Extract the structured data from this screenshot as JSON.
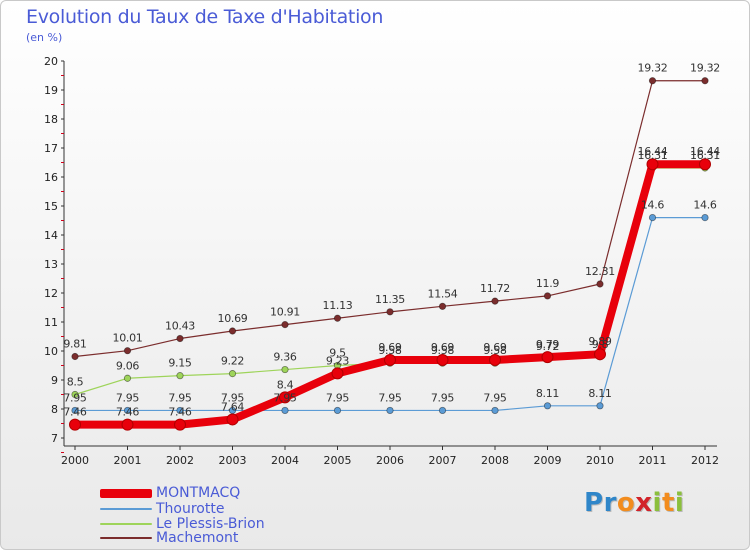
{
  "title": "Evolution du Taux de Taxe d'Habitation",
  "subtitle": "(en %)",
  "logo": {
    "text": "Proxiti",
    "letters": [
      {
        "ch": "P",
        "color": "#2f86c9"
      },
      {
        "ch": "r",
        "color": "#2f86c9"
      },
      {
        "ch": "o",
        "color": "#f28c1e"
      },
      {
        "ch": "x",
        "color": "#d2232a"
      },
      {
        "ch": "i",
        "color": "#8bbf3c"
      },
      {
        "ch": "t",
        "color": "#f28c1e"
      },
      {
        "ch": "i",
        "color": "#8bbf3c"
      }
    ]
  },
  "chart_data": {
    "type": "line",
    "title": "Evolution du Taux de Taxe d'Habitation",
    "ylabel": "(en %)",
    "xlabel": "",
    "x": [
      2000,
      2001,
      2002,
      2003,
      2004,
      2005,
      2006,
      2007,
      2008,
      2009,
      2010,
      2011,
      2012
    ],
    "ylim": [
      7,
      20
    ],
    "yticks": [
      7,
      8,
      9,
      10,
      11,
      12,
      13,
      14,
      15,
      16,
      17,
      18,
      19,
      20
    ],
    "grid": false,
    "legend": "bottom-left",
    "series": [
      {
        "name": "MONTMACQ",
        "color": "#e8000b",
        "values": [
          7.46,
          7.46,
          7.46,
          7.64,
          8.4,
          9.23,
          9.69,
          9.69,
          9.69,
          9.79,
          9.89,
          16.44,
          16.44
        ],
        "labels": [
          "7.46",
          "7.46",
          "7.46",
          "7.64",
          "8.4",
          "9.23",
          "9.69",
          "9.69",
          "9.69",
          "9.79",
          "9.89",
          "16.44",
          "16.44"
        ]
      },
      {
        "name": "Thourotte",
        "color": "#5b9bd5",
        "values": [
          7.95,
          7.95,
          7.95,
          7.95,
          7.95,
          7.95,
          7.95,
          7.95,
          7.95,
          8.11,
          8.11,
          14.6,
          14.6
        ],
        "labels": [
          "7.95",
          "7.95",
          "7.95",
          "7.95",
          "7.95",
          "7.95",
          "7.95",
          "7.95",
          "7.95",
          "8.11",
          "8.11",
          "14.6",
          "14.6"
        ]
      },
      {
        "name": "Le Plessis-Brion",
        "color": "#9ed45a",
        "values": [
          8.5,
          9.06,
          9.15,
          9.22,
          9.36,
          9.5,
          9.58,
          9.58,
          9.58,
          9.72,
          9.8,
          16.31,
          16.31
        ],
        "labels": [
          "8.5",
          "9.06",
          "9.15",
          "9.22",
          "9.36",
          "9.5",
          "9.58",
          "9.58",
          "9.58",
          "9.72",
          "9.8",
          "16.31",
          "16.31"
        ]
      },
      {
        "name": "Machemont",
        "color": "#7b2d2d",
        "values": [
          9.81,
          10.01,
          10.43,
          10.69,
          10.91,
          11.13,
          11.35,
          11.54,
          11.72,
          11.9,
          12.31,
          19.32,
          19.32
        ],
        "labels": [
          "9.81",
          "10.01",
          "10.43",
          "10.69",
          "10.91",
          "11.13",
          "11.35",
          "11.54",
          "11.72",
          "11.9",
          "12.31",
          "19.32",
          "19.32"
        ]
      }
    ]
  }
}
